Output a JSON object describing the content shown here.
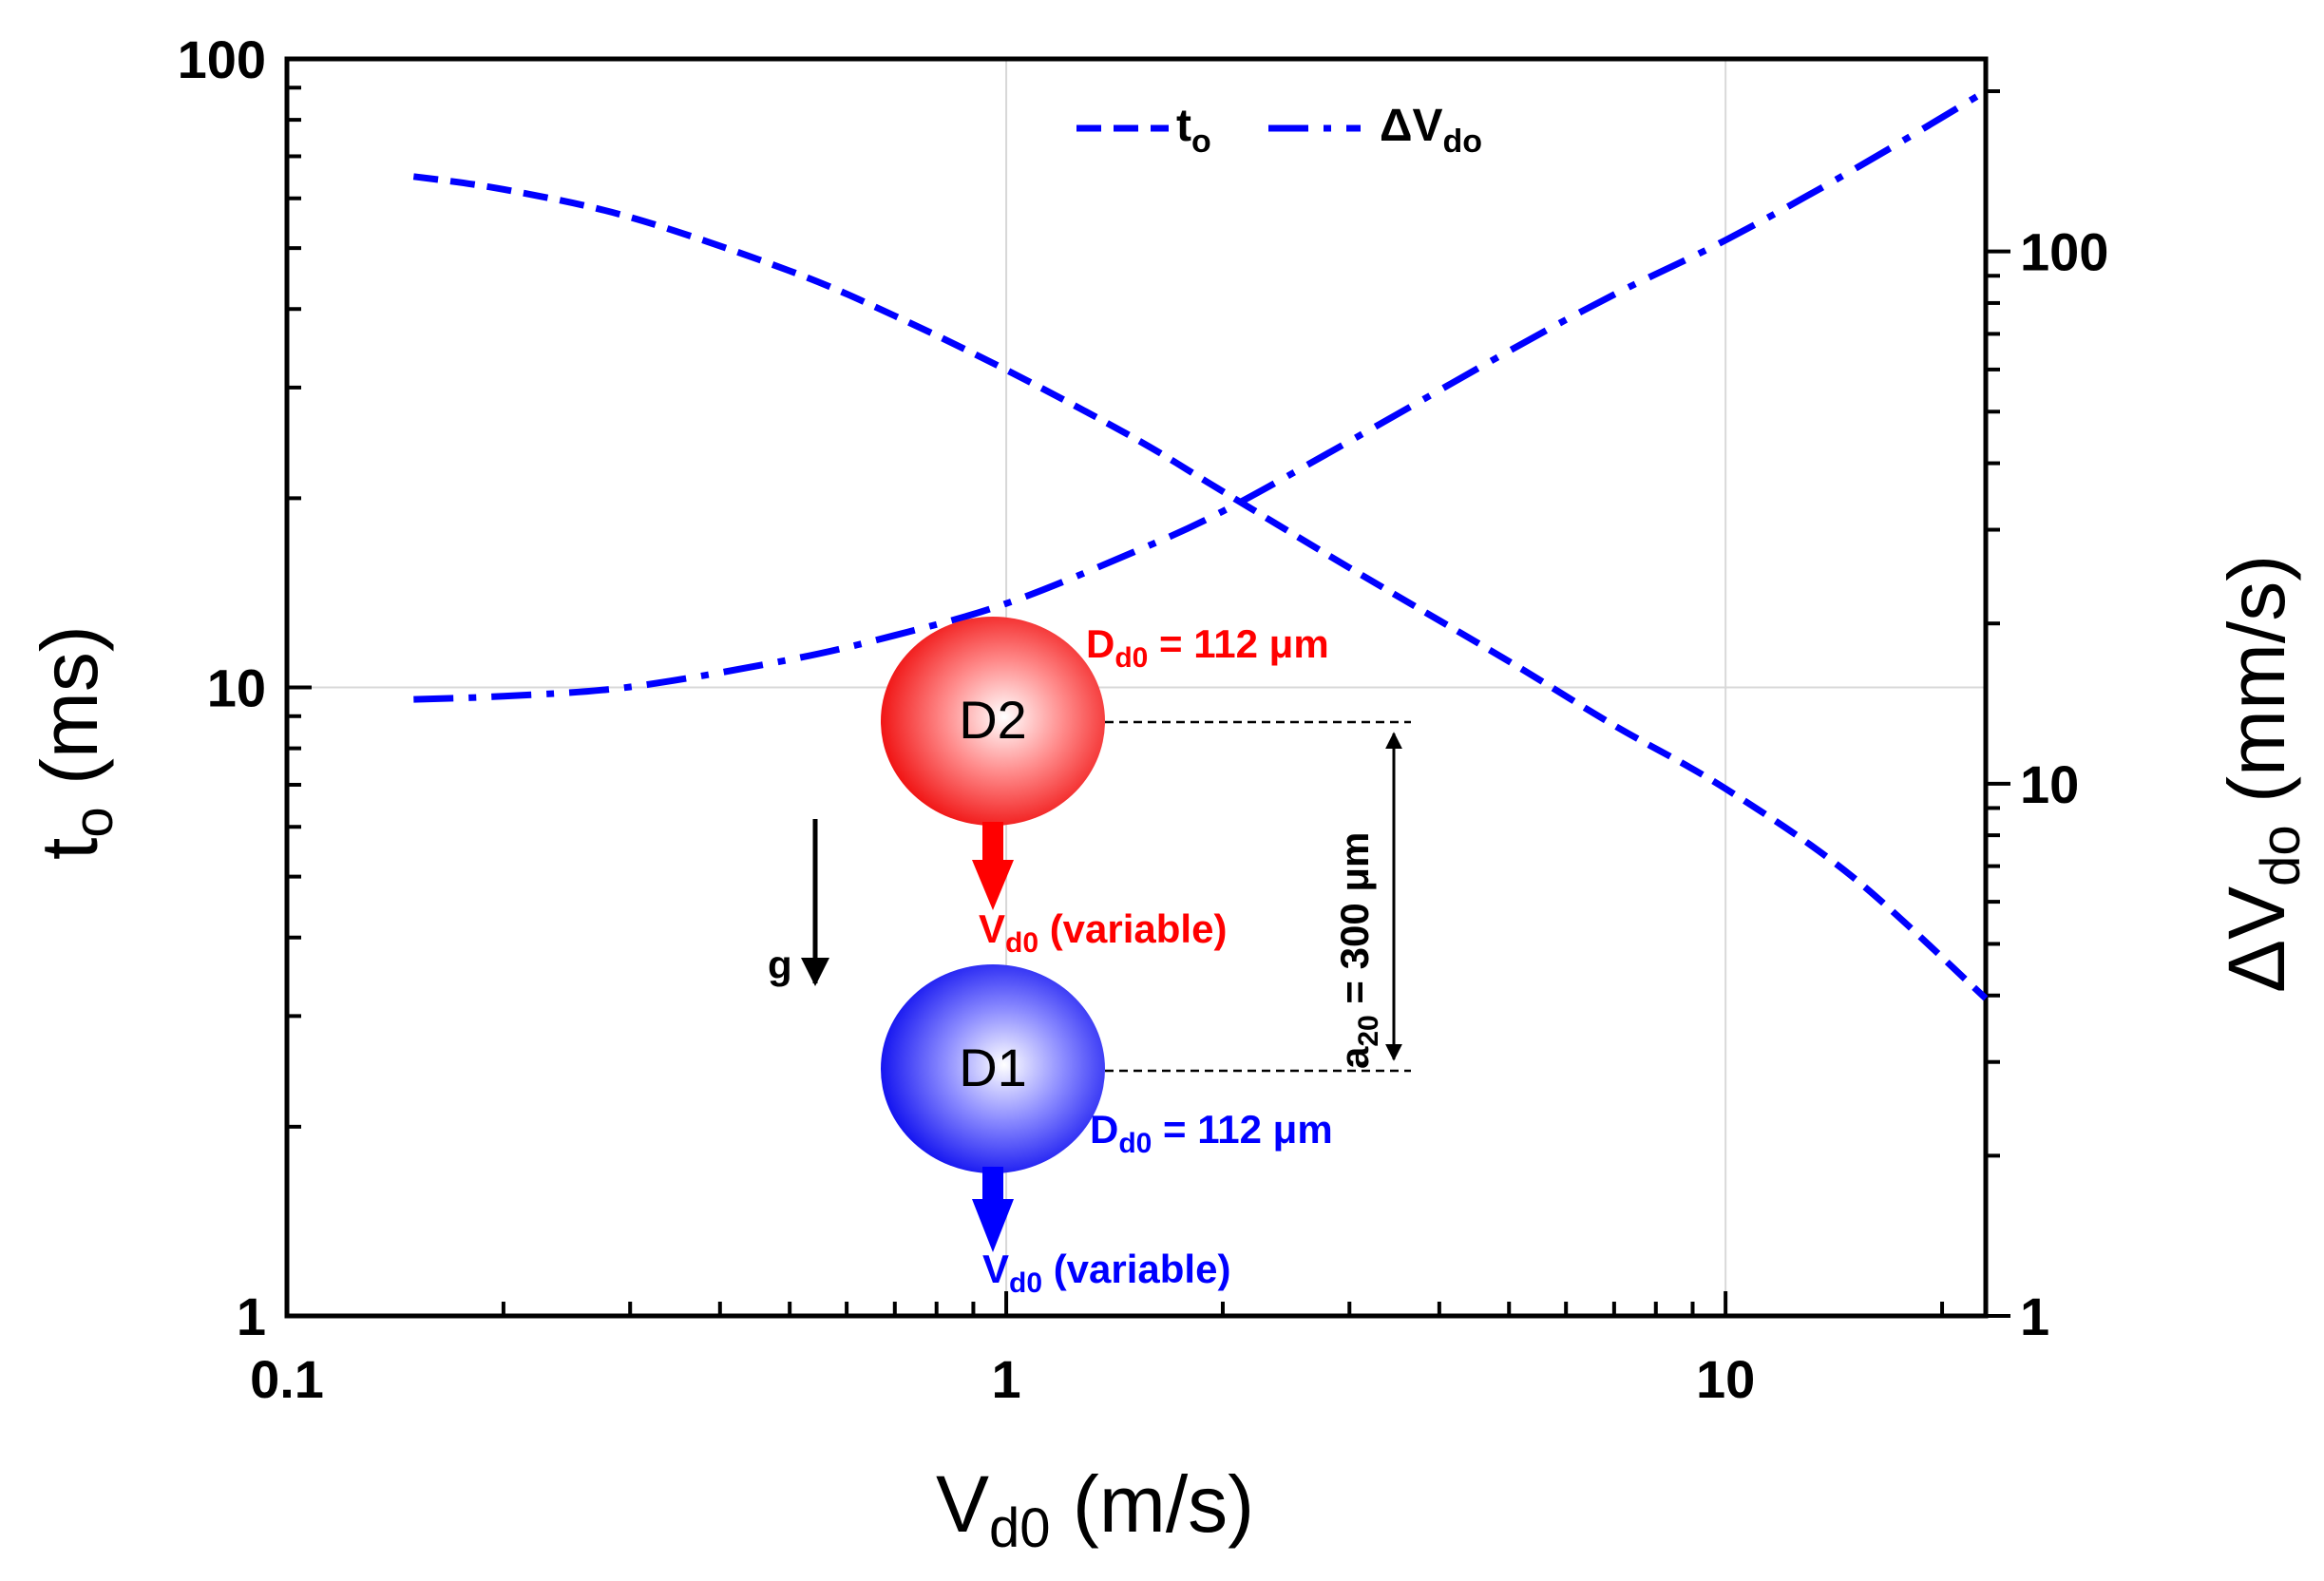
{
  "chart_data": {
    "type": "line",
    "title": "",
    "x": [
      0.15,
      0.2,
      0.3,
      0.5,
      0.7,
      1,
      1.5,
      2,
      3,
      5,
      7,
      10,
      15,
      23
    ],
    "series": [
      {
        "name": "t",
        "name_sub": "o",
        "axis": "left",
        "unit": "ms",
        "style": "dash",
        "color": "#0000ff",
        "values": [
          65,
          62,
          56,
          46,
          39,
          32,
          25,
          20.5,
          15.5,
          11,
          8.7,
          6.9,
          5.0,
          3.2
        ]
      },
      {
        "name": "ΔV",
        "name_sub": "do",
        "axis": "right",
        "unit": "mm/s",
        "style": "dashdot",
        "color": "#0000ff",
        "values": [
          14.4,
          14.6,
          15.2,
          17.1,
          19.0,
          21.8,
          27.2,
          32.5,
          44.0,
          65.0,
          83.0,
          105.0,
          142.0,
          200.0
        ]
      }
    ],
    "x_axis": {
      "scale": "log",
      "range": [
        0.1,
        23
      ],
      "ticks": [
        "0.1",
        "1",
        "10"
      ],
      "label_main": "V",
      "label_sub": "d0",
      "label_unit": " (m/s)"
    },
    "y_left": {
      "scale": "log",
      "range": [
        1,
        100
      ],
      "ticks": [
        "1",
        "10",
        "100"
      ],
      "label_main": "t",
      "label_sub": "o",
      "label_unit": " (ms)"
    },
    "y_right": {
      "scale": "log",
      "range": [
        1,
        230
      ],
      "ticks": [
        "1",
        "10",
        "100"
      ],
      "label_main": "ΔV",
      "label_sub": "do",
      "label_unit": " (mm/s)"
    },
    "grid": true,
    "legend": "top-right"
  },
  "diagram": {
    "droplet_top": {
      "label": "D2",
      "color": "#ff0000",
      "diameter_main": "D",
      "diameter_sub": "d0",
      "diameter_value": " = 112 μm",
      "velocity_main": "V",
      "velocity_sub": "d0",
      "velocity_value": " (variable)"
    },
    "droplet_bottom": {
      "label": "D1",
      "color": "#0000ff",
      "diameter_main": "D",
      "diameter_sub": "d0",
      "diameter_value": " = 112 μm",
      "velocity_main": "V",
      "velocity_sub": "d0",
      "velocity_value": " (variable)"
    },
    "gravity_label": "g",
    "spacing_main": "a",
    "spacing_sub": "20",
    "spacing_value": " = 300 μm"
  }
}
